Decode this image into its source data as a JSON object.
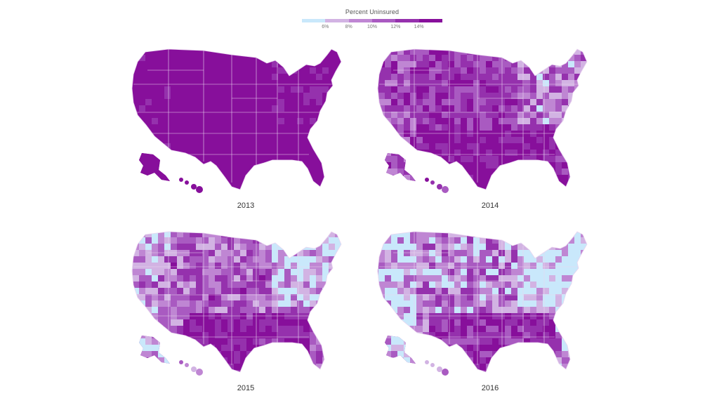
{
  "legend": {
    "title": "Percent Uninsured",
    "ticks": [
      "6%",
      "8%",
      "10%",
      "12%",
      "14%"
    ],
    "colors": [
      "#c9e8fb",
      "#d2b3e3",
      "#bf86d3",
      "#a95ac1",
      "#9531ad",
      "#870f9b"
    ]
  },
  "colors": {
    "background": "#ffffff",
    "border": "#ead5f0"
  },
  "maps": [
    {
      "year": "2013",
      "uninsured_level": 0.95
    },
    {
      "year": "2014",
      "uninsured_level": 0.72
    },
    {
      "year": "2015",
      "uninsured_level": 0.55
    },
    {
      "year": "2016",
      "uninsured_level": 0.42
    }
  ]
}
